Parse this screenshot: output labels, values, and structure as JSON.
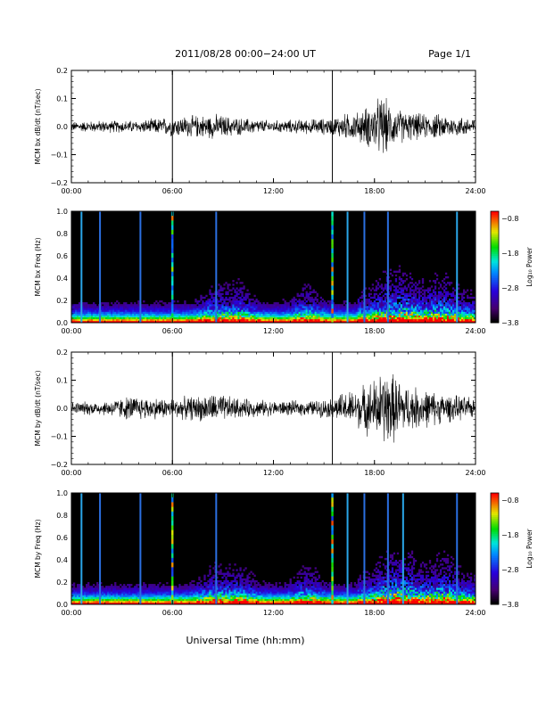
{
  "header": {
    "title": "2011/08/28  00:00−24:00 UT",
    "page": "Page 1/1"
  },
  "xlabel": "Universal Time (hh:mm)",
  "chart_data": [
    {
      "type": "line",
      "ylabel": "MCM bx dB/dt (nT/sec)",
      "xlim": [
        0,
        24
      ],
      "ylim": [
        -0.2,
        0.2
      ],
      "x_ticks": [
        "00:00",
        "06:00",
        "12:00",
        "18:00",
        "24:00"
      ],
      "y_ticks": [
        "0.2",
        "0.1",
        "0.0",
        "−0.1",
        "−0.2"
      ],
      "marker_lines_hours": [
        6.0,
        15.5
      ],
      "envelope": {
        "hours": [
          0,
          2,
          4,
          6,
          8.6,
          10,
          12,
          14,
          15.5,
          16,
          17,
          18,
          18.5,
          19,
          20,
          21,
          22,
          23,
          24
        ],
        "amplitude": [
          0.02,
          0.025,
          0.025,
          0.04,
          0.05,
          0.035,
          0.025,
          0.03,
          0.035,
          0.05,
          0.06,
          0.1,
          0.13,
          0.08,
          0.06,
          0.05,
          0.05,
          0.04,
          0.04
        ]
      }
    },
    {
      "type": "heatmap",
      "ylabel": "MCM bx Freq (Hz)",
      "xlim": [
        0,
        24
      ],
      "ylim": [
        0,
        1.0
      ],
      "x_ticks": [
        "00:00",
        "06:00",
        "12:00",
        "18:00",
        "24:00"
      ],
      "y_ticks": [
        "1.0",
        "0.8",
        "0.6",
        "0.4",
        "0.2",
        "0.0"
      ],
      "colorbar": {
        "label": "Log₁₀ Power",
        "ticks": [
          "−0.8",
          "−1.8",
          "−2.8",
          "−3.8"
        ],
        "range": [
          -3.8,
          -0.6
        ]
      },
      "vertical_lines_hours": [
        0.6,
        1.7,
        4.1,
        6.0,
        8.6,
        15.5,
        16.4,
        17.4,
        18.8,
        22.9
      ],
      "activity_hours": [
        8.5,
        10.0,
        14.0,
        18.8,
        20.0,
        22.0
      ]
    },
    {
      "type": "line",
      "ylabel": "MCM by dB/dt (nT/sec)",
      "xlim": [
        0,
        24
      ],
      "ylim": [
        -0.2,
        0.2
      ],
      "x_ticks": [
        "00:00",
        "06:00",
        "12:00",
        "18:00",
        "24:00"
      ],
      "y_ticks": [
        "0.2",
        "0.1",
        "0.0",
        "−0.1",
        "−0.2"
      ],
      "marker_lines_hours": [
        6.0,
        15.5
      ],
      "envelope": {
        "hours": [
          0,
          2,
          3.5,
          6,
          8.6,
          10,
          12,
          14,
          15.5,
          16,
          17,
          18,
          18.7,
          19.5,
          20,
          21,
          22,
          23,
          24
        ],
        "amplitude": [
          0.025,
          0.03,
          0.05,
          0.04,
          0.06,
          0.04,
          0.03,
          0.03,
          0.04,
          0.06,
          0.08,
          0.12,
          0.16,
          0.12,
          0.09,
          0.08,
          0.06,
          0.05,
          0.04
        ]
      }
    },
    {
      "type": "heatmap",
      "ylabel": "MCM by Freq (Hz)",
      "xlim": [
        0,
        24
      ],
      "ylim": [
        0,
        1.0
      ],
      "x_ticks": [
        "00:00",
        "06:00",
        "12:00",
        "18:00",
        "24:00"
      ],
      "y_ticks": [
        "1.0",
        "0.8",
        "0.6",
        "0.4",
        "0.2",
        "0.0"
      ],
      "colorbar": {
        "label": "Log₁₀ Power",
        "ticks": [
          "−0.8",
          "−1.8",
          "−2.8",
          "−3.8"
        ],
        "range": [
          -3.8,
          -0.6
        ]
      },
      "vertical_lines_hours": [
        0.6,
        1.7,
        4.1,
        6.0,
        8.6,
        15.5,
        16.4,
        17.4,
        18.8,
        19.7,
        22.9
      ],
      "activity_hours": [
        8.5,
        10.0,
        14.0,
        18.8,
        20.0,
        22.0
      ]
    }
  ]
}
